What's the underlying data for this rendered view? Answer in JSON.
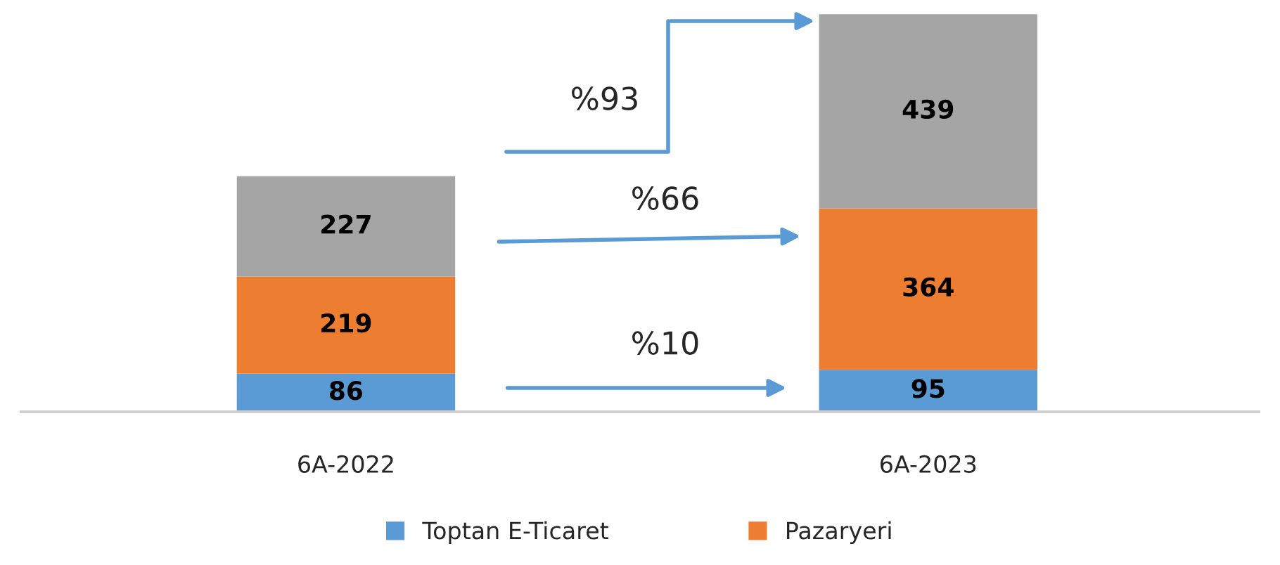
{
  "chart_data": {
    "type": "bar",
    "stacked": true,
    "categories": [
      "6A-2022",
      "6A-2023"
    ],
    "series": [
      {
        "name": "Toptan E-Ticaret",
        "color": "#5b9bd5",
        "values": [
          86,
          95
        ]
      },
      {
        "name": "Pazaryeri",
        "color": "#ed7d31",
        "values": [
          219,
          364
        ]
      },
      {
        "color": "#a5a5a5",
        "values": [
          227,
          439
        ]
      }
    ],
    "data_labels": true,
    "legend": "bottom",
    "grid": false,
    "annotations": [
      "%93",
      "%66",
      "%10"
    ]
  }
}
